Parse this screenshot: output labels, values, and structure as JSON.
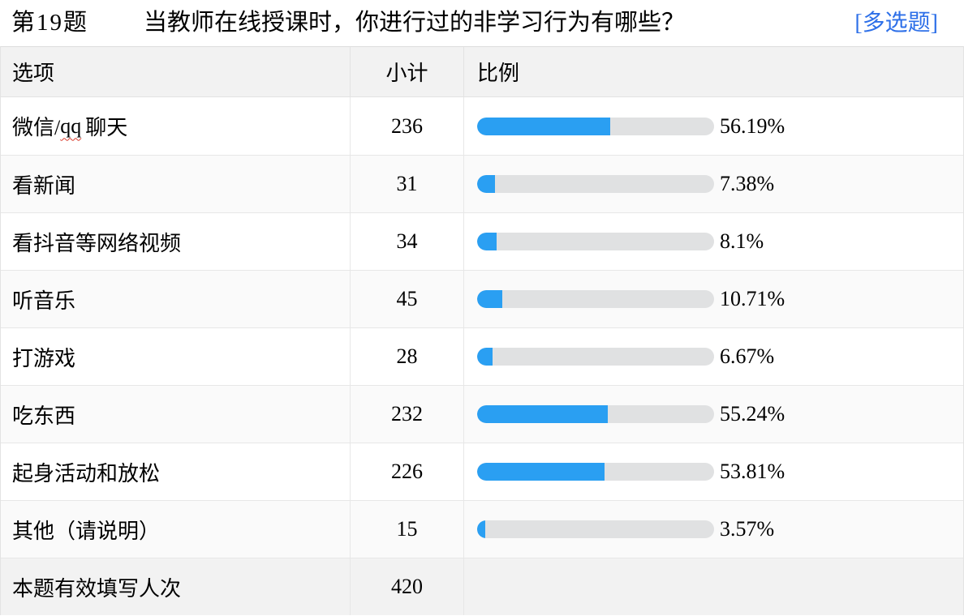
{
  "title": {
    "question_no": "第19题",
    "question_text": "当教师在线授课时，你进行过的非学习行为有哪些？",
    "type_tag": "[多选题]"
  },
  "table": {
    "columns": [
      "选项",
      "小计",
      "比例"
    ],
    "rows": [
      {
        "label": "微信/qq聊天",
        "label_parts": {
          "prefix": "微信/",
          "wavy": "qq",
          "suffix": "聊天"
        },
        "count": "236",
        "percent": 56.19,
        "percent_label": "56.19%"
      },
      {
        "label": "看新闻",
        "count": "31",
        "percent": 7.38,
        "percent_label": "7.38%"
      },
      {
        "label": "看抖音等网络视频",
        "count": "34",
        "percent": 8.1,
        "percent_label": "8.1%"
      },
      {
        "label": "听音乐",
        "count": "45",
        "percent": 10.71,
        "percent_label": "10.71%"
      },
      {
        "label": "打游戏",
        "count": "28",
        "percent": 6.67,
        "percent_label": "6.67%"
      },
      {
        "label": "吃东西",
        "count": "232",
        "percent": 55.24,
        "percent_label": "55.24%"
      },
      {
        "label": "起身活动和放松",
        "count": "226",
        "percent": 53.81,
        "percent_label": "53.81%"
      },
      {
        "label": "其他（请说明）",
        "count": "15",
        "percent": 3.57,
        "percent_label": "3.57%"
      },
      {
        "label": "本题有效填写人次",
        "count": "420",
        "percent": null,
        "percent_label": ""
      }
    ]
  },
  "colors": {
    "bar_fill": "#2a9ff2",
    "bar_track": "#e0e1e2",
    "type_tag_blue": "#2d6fe8",
    "header_bg": "#f2f2f2",
    "alt_row_bg": "#fafafa",
    "summary_row_bg": "#f2f2f2",
    "spellcheck_wavy_red": "#d93a2b"
  },
  "chart_data": {
    "type": "bar",
    "orientation": "horizontal",
    "title": "第19题 当教师在线授课时，你进行过的非学习行为有哪些？ [多选题]",
    "categories": [
      "微信/qq聊天",
      "看新闻",
      "看抖音等网络视频",
      "听音乐",
      "打游戏",
      "吃东西",
      "起身活动和放松",
      "其他（请说明）"
    ],
    "series": [
      {
        "name": "小计",
        "values": [
          236,
          31,
          34,
          45,
          28,
          232,
          226,
          15
        ]
      },
      {
        "name": "比例(%)",
        "values": [
          56.19,
          7.38,
          8.1,
          10.71,
          6.67,
          55.24,
          53.81,
          3.57
        ]
      }
    ],
    "xlabel": "比例",
    "ylabel": "选项",
    "xlim": [
      0,
      100
    ],
    "grid": false,
    "legend_position": "none",
    "valid_responses_label": "本题有效填写人次",
    "valid_responses": 420
  }
}
